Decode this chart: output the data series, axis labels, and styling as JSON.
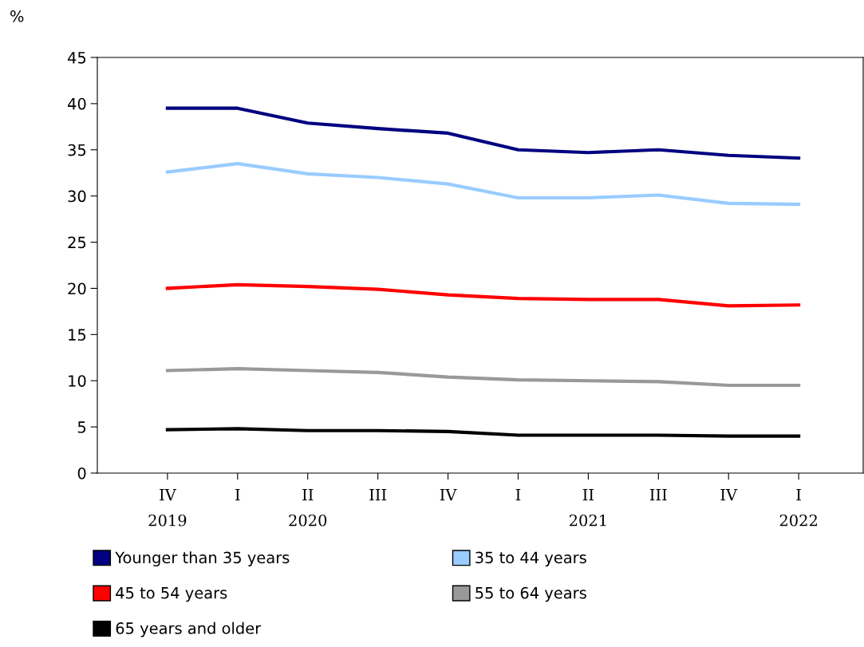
{
  "chart_data": {
    "type": "line",
    "ylabel": "%",
    "categories": [
      "IV\n2019",
      "I",
      "II\n2020",
      "III",
      "IV",
      "I",
      "II\n2021",
      "III",
      "IV",
      "I\n2022"
    ],
    "series": [
      {
        "name": "Younger than 35 years",
        "color": "#000080",
        "values": [
          39.5,
          39.5,
          37.9,
          37.3,
          36.8,
          35.0,
          34.7,
          35.0,
          34.4,
          34.1
        ]
      },
      {
        "name": "35 to 44 years",
        "color": "#99ccff",
        "values": [
          32.6,
          33.5,
          32.4,
          32.0,
          31.3,
          29.8,
          29.8,
          30.1,
          29.2,
          29.1
        ]
      },
      {
        "name": "45 to 54 years",
        "color": "#ff0000",
        "values": [
          20.0,
          20.4,
          20.2,
          19.9,
          19.3,
          18.9,
          18.8,
          18.8,
          18.1,
          18.2
        ]
      },
      {
        "name": "55 to 64 years",
        "color": "#999999",
        "values": [
          11.1,
          11.3,
          11.1,
          10.9,
          10.4,
          10.1,
          10.0,
          9.9,
          9.5,
          9.5
        ]
      },
      {
        "name": "65 years and older",
        "color": "#000000",
        "values": [
          4.7,
          4.8,
          4.6,
          4.6,
          4.5,
          4.1,
          4.1,
          4.1,
          4.0,
          4.0
        ]
      }
    ],
    "ylim": [
      0,
      45
    ],
    "yticks": [
      0,
      5,
      10,
      15,
      20,
      25,
      30,
      35,
      40,
      45
    ],
    "grid": false,
    "legend": "bottom",
    "marker": "none",
    "line_style": "solid"
  }
}
